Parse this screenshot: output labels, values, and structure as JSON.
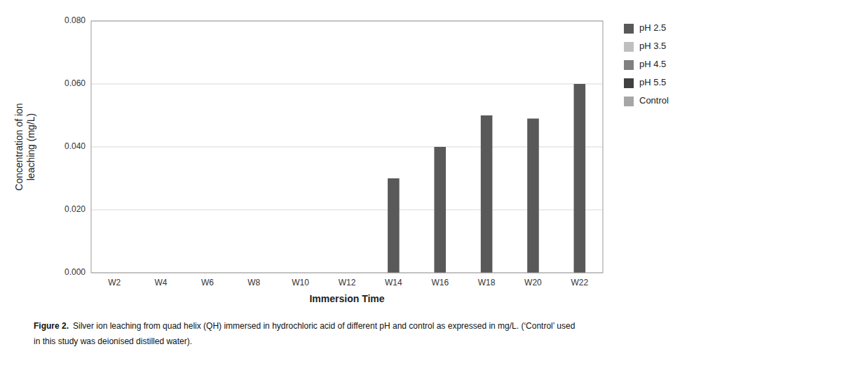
{
  "chart_data": {
    "type": "bar",
    "categories": [
      "W2",
      "W4",
      "W6",
      "W8",
      "W10",
      "W12",
      "W14",
      "W16",
      "W18",
      "W20",
      "W22"
    ],
    "series": [
      {
        "name": "pH 2.5",
        "color": "#595959",
        "values": [
          0,
          0,
          0,
          0,
          0,
          0,
          0.03,
          0.04,
          0.05,
          0.049,
          0.06
        ]
      },
      {
        "name": "pH 3.5",
        "color": "#bfbfbf",
        "values": [
          0,
          0,
          0,
          0,
          0,
          0,
          0,
          0,
          0,
          0,
          0
        ]
      },
      {
        "name": "pH 4.5",
        "color": "#808080",
        "values": [
          0,
          0,
          0,
          0,
          0,
          0,
          0,
          0,
          0,
          0,
          0
        ]
      },
      {
        "name": "pH 5.5",
        "color": "#404040",
        "values": [
          0,
          0,
          0,
          0,
          0,
          0,
          0,
          0,
          0,
          0,
          0
        ]
      },
      {
        "name": "Control",
        "color": "#a6a6a6",
        "values": [
          0,
          0,
          0,
          0,
          0,
          0,
          0,
          0,
          0,
          0,
          0
        ]
      }
    ],
    "xlabel": "Immersion Time",
    "ylabel": "Concentration of ion\nleaching (mg/L)",
    "ylim": [
      0,
      0.08
    ],
    "yticks": [
      {
        "value": 0.0,
        "label": "0.000"
      },
      {
        "value": 0.02,
        "label": "0.020"
      },
      {
        "value": 0.04,
        "label": "0.040"
      },
      {
        "value": 0.06,
        "label": "0.060"
      },
      {
        "value": 0.08,
        "label": "0.080"
      }
    ],
    "grid": true,
    "legend": "right",
    "annotations": [
      "Figure 2.",
      "Silver ion leaching from quad helix (QH) immersed in hydrochloric acid of different pH and control as expressed in mg/L. (‘Control’ used",
      "in this study was deionised distilled water)."
    ]
  }
}
